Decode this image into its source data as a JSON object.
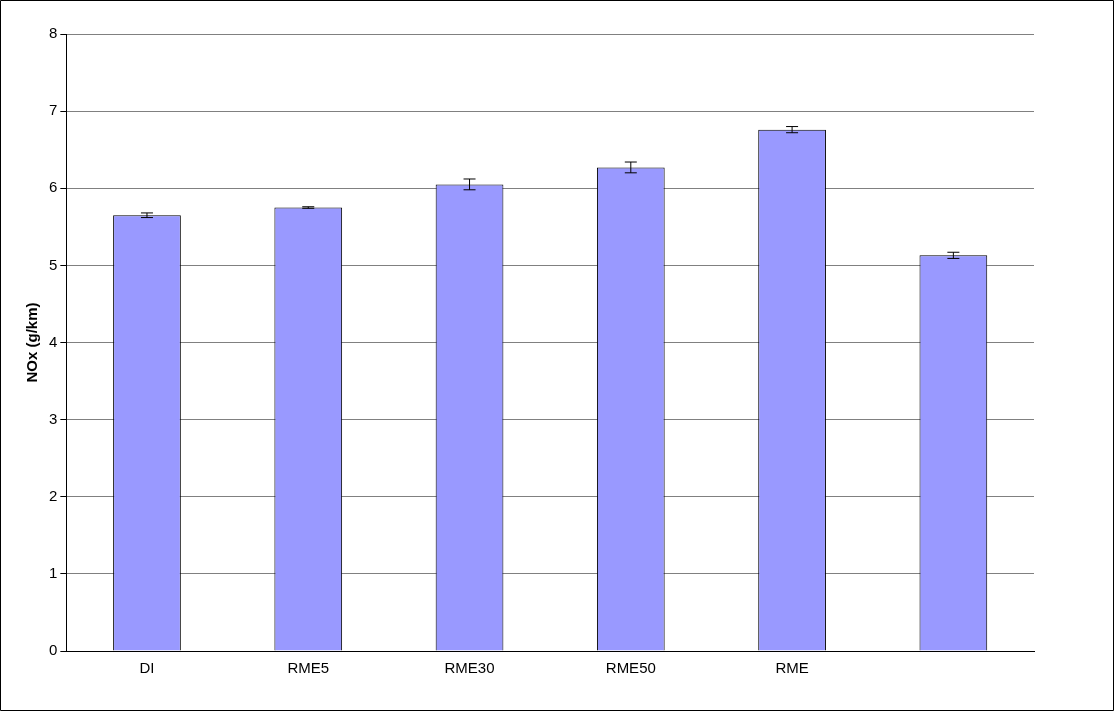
{
  "chart_data": {
    "type": "bar",
    "ylabel": "NOx (g/km)",
    "categories": [
      "DI",
      "RME5",
      "RME30",
      "RME50",
      "RME",
      null
    ],
    "values": [
      5.65,
      5.75,
      6.05,
      6.27,
      6.76,
      5.13
    ],
    "errors": [
      0.03,
      0.01,
      0.07,
      0.07,
      0.04,
      0.04
    ],
    "color": "#9999ff",
    "ylim": [
      0,
      8
    ],
    "yticks": [
      0,
      1,
      2,
      3,
      4,
      5,
      6,
      7,
      8
    ],
    "grid": "y",
    "legend": false
  }
}
